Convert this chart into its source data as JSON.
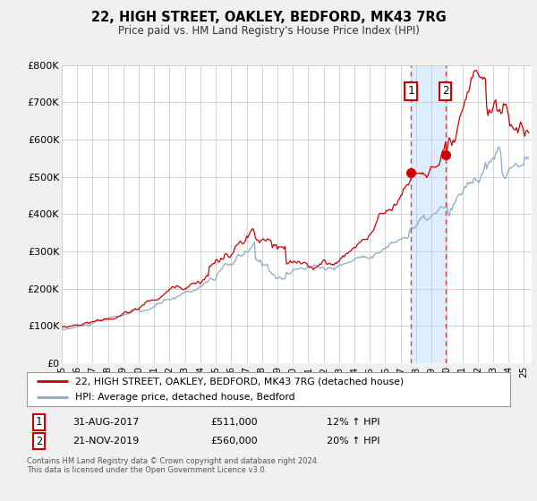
{
  "title": "22, HIGH STREET, OAKLEY, BEDFORD, MK43 7RG",
  "subtitle": "Price paid vs. HM Land Registry's House Price Index (HPI)",
  "ylabel_ticks": [
    "£0",
    "£100K",
    "£200K",
    "£300K",
    "£400K",
    "£500K",
    "£600K",
    "£700K",
    "£800K"
  ],
  "ylim": [
    0,
    800000
  ],
  "xlim_start": 1995.0,
  "xlim_end": 2025.5,
  "legend_line1": "22, HIGH STREET, OAKLEY, BEDFORD, MK43 7RG (detached house)",
  "legend_line2": "HPI: Average price, detached house, Bedford",
  "annotation1_label": "1",
  "annotation1_date": "31-AUG-2017",
  "annotation1_price": "£511,000",
  "annotation1_hpi": "12% ↑ HPI",
  "annotation2_label": "2",
  "annotation2_date": "21-NOV-2019",
  "annotation2_price": "£560,000",
  "annotation2_hpi": "20% ↑ HPI",
  "footnote": "Contains HM Land Registry data © Crown copyright and database right 2024.\nThis data is licensed under the Open Government Licence v3.0.",
  "line_color_red": "#cc0000",
  "line_color_blue": "#88aacc",
  "annotation_box_color": "#cc0000",
  "vline_color": "#dd4444",
  "highlight_fill": "#ddeeff",
  "sale1_year": 2017.667,
  "sale1_value": 511000,
  "sale2_year": 2019.9,
  "sale2_value": 560000,
  "background_color": "#f0f0f0",
  "plot_bg_color": "#ffffff"
}
